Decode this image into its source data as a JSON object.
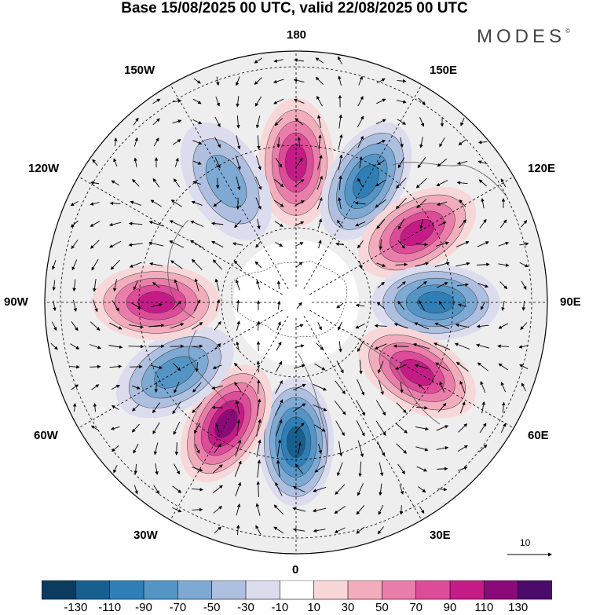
{
  "title": "Base 15/08/2025 00 UTC, valid 22/08/2025 00 UTC",
  "brand": "MODES",
  "brand_mark": "©",
  "longitude_labels": {
    "top": "180",
    "top_left": "150W",
    "top_right": "150E",
    "upper_left": "120W",
    "upper_right": "120E",
    "left": "90W",
    "right": "90E",
    "lower_left": "60W",
    "lower_right": "60E",
    "bottom_left": "30W",
    "bottom_right": "30E",
    "bottom": "0"
  },
  "reference_vector": {
    "label": "10"
  },
  "colorbar": {
    "tick_labels": [
      "-130",
      "-110",
      "-90",
      "-70",
      "-50",
      "-30",
      "-10",
      "10",
      "30",
      "50",
      "70",
      "90",
      "110",
      "130"
    ],
    "colors": [
      "#0b3b5e",
      "#175f8e",
      "#2f7fb6",
      "#5495c6",
      "#7da9d3",
      "#aebfdf",
      "#dcdcef",
      "#ffffff",
      "#f8d7d9",
      "#f2adbd",
      "#ea7eaa",
      "#dd4c98",
      "#c41b86",
      "#8b0a79",
      "#4c0a6a"
    ]
  },
  "anomaly_centers": [
    {
      "sign": "positive",
      "intensity": 90,
      "lon_label": "180"
    },
    {
      "sign": "negative",
      "intensity": -90,
      "lon_label": "150E"
    },
    {
      "sign": "positive",
      "intensity": 90,
      "lon_label": "120E"
    },
    {
      "sign": "negative",
      "intensity": -90,
      "lon_label": "90E"
    },
    {
      "sign": "positive",
      "intensity": 90,
      "lon_label": "60E"
    },
    {
      "sign": "negative",
      "intensity": -110,
      "lon_label": "0"
    },
    {
      "sign": "positive",
      "intensity": 110,
      "lon_label": "30W"
    },
    {
      "sign": "negative",
      "intensity": -70,
      "lon_label": "60W"
    },
    {
      "sign": "positive",
      "intensity": 90,
      "lon_label": "90W"
    },
    {
      "sign": "negative",
      "intensity": -50,
      "lon_label": "150W"
    }
  ]
}
